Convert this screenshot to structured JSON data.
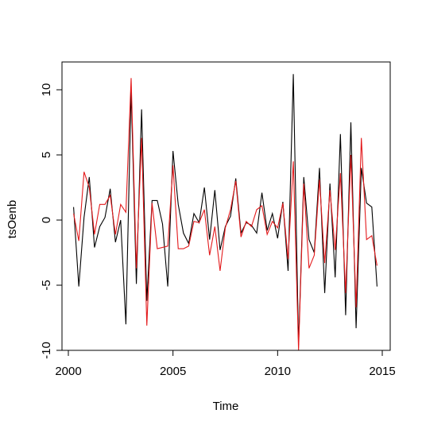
{
  "chart_data": {
    "type": "line",
    "title": "",
    "xlabel": "Time",
    "ylabel": "tsOenb",
    "xlim": [
      2000.0,
      2015.0
    ],
    "ylim": [
      -10,
      10
    ],
    "x_ticks": [
      {
        "value": 2000,
        "label": "2000"
      },
      {
        "value": 2005,
        "label": "2005"
      },
      {
        "value": 2010,
        "label": "2010"
      },
      {
        "value": 2015,
        "label": "2015"
      }
    ],
    "y_ticks": [
      {
        "value": -10,
        "label": "-10"
      },
      {
        "value": -5,
        "label": "-5"
      },
      {
        "value": 0,
        "label": "0"
      },
      {
        "value": 5,
        "label": "5"
      },
      {
        "value": 10,
        "label": "10"
      }
    ],
    "grid": false,
    "legend": "none",
    "x": [
      2000.25,
      2000.5,
      2000.75,
      2001,
      2001.25,
      2001.5,
      2001.75,
      2002,
      2002.25,
      2002.5,
      2002.75,
      2003,
      2003.25,
      2003.5,
      2003.75,
      2004,
      2004.25,
      2004.5,
      2004.75,
      2005,
      2005.25,
      2005.5,
      2005.75,
      2006,
      2006.25,
      2006.5,
      2006.75,
      2007,
      2007.25,
      2007.5,
      2007.75,
      2008,
      2008.25,
      2008.5,
      2008.75,
      2009,
      2009.25,
      2009.5,
      2009.75,
      2010,
      2010.25,
      2010.5,
      2010.75,
      2011,
      2011.25,
      2011.5,
      2011.75,
      2012,
      2012.25,
      2012.5,
      2012.75,
      2013,
      2013.25,
      2013.5,
      2013.75,
      2014,
      2014.25,
      2014.5,
      2014.75
    ],
    "series": [
      {
        "color": "#000000",
        "values": [
          1.0,
          -5.1,
          0.2,
          3.3,
          -2.1,
          -0.5,
          0.2,
          2.4,
          -1.7,
          0.0,
          -8.0,
          10.0,
          -4.9,
          8.5,
          -6.2,
          1.5,
          1.5,
          -0.3,
          -5.1,
          5.3,
          1.2,
          -1.0,
          -1.8,
          0.5,
          -0.2,
          2.5,
          -1.5,
          2.3,
          -2.3,
          -0.5,
          0.3,
          3.2,
          -1.0,
          -0.2,
          -0.4,
          -1.0,
          2.1,
          -0.8,
          0.5,
          -1.4,
          1.4,
          -3.9,
          11.2,
          -9.6,
          3.3,
          -1.5,
          -2.5,
          4.0,
          -5.6,
          2.8,
          -4.4,
          6.6,
          -7.3,
          7.5,
          -8.3,
          4.0,
          1.3,
          1.0,
          -5.1
        ]
      },
      {
        "color": "#e31a1c",
        "values": [
          0.5,
          -1.6,
          3.7,
          2.5,
          -1.1,
          1.2,
          1.2,
          1.9,
          -1.1,
          1.2,
          0.6,
          10.9,
          -3.7,
          6.3,
          -8.1,
          1.3,
          -2.2,
          -2.1,
          -2.0,
          4.2,
          -2.2,
          -2.2,
          -2.0,
          -0.1,
          -0.2,
          0.8,
          -2.7,
          -0.5,
          -3.9,
          -0.6,
          0.8,
          3.0,
          -1.3,
          -0.1,
          -0.5,
          0.8,
          1.1,
          -1.1,
          -0.1,
          -0.6,
          1.3,
          -3.0,
          4.5,
          -10.0,
          2.8,
          -3.7,
          -2.7,
          3.1,
          -3.3,
          2.3,
          -2.3,
          3.6,
          -5.6,
          5.0,
          -6.7,
          6.3,
          -1.5,
          -1.2,
          -3.5
        ]
      }
    ]
  }
}
